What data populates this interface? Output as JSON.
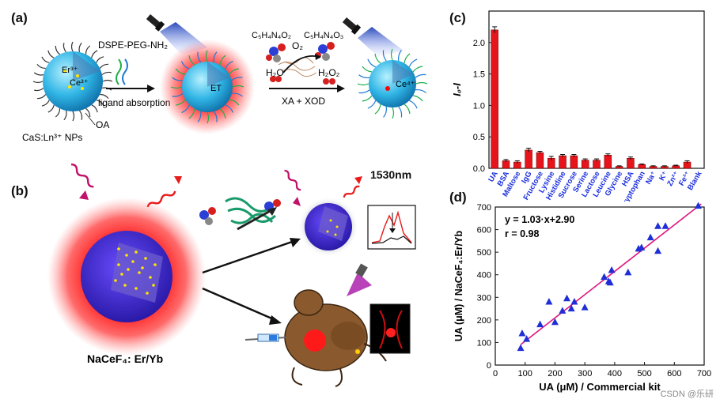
{
  "panels": {
    "a": {
      "label": "(a)",
      "np_label": "CaS:Ln³⁺ NPs",
      "er_ion": "Er³⁺",
      "ce3_ion": "Ce³⁺",
      "ce4_ion": "Ce⁴⁺",
      "oa": "OA",
      "dspe": "DSPE-PEG-NH₂",
      "ligand": "ligand absorption",
      "et": "ET",
      "substrate": "C₅H₄N₄O₂",
      "product": "C₅H₄N₄O₃",
      "o2": "O₂",
      "h2o": "H₂O",
      "h2o2": "H₂O₂",
      "enzyme": "XA + XOD"
    },
    "b": {
      "label": "(b)",
      "wavelength": "1530nm",
      "material": "NaCeF₄: Er/Yb"
    },
    "c": {
      "label": "(c)"
    },
    "d": {
      "label": "(d)"
    }
  },
  "watermark": "CSDN @乐研",
  "colors": {
    "bar": "#e8141b",
    "scatter": "#1f2fd6",
    "fit": "#e0167e",
    "ticklabel_blue": "#1a2ee0"
  },
  "chart_data": [
    {
      "id": "c",
      "type": "bar",
      "ylabel": "I₀-I",
      "ylim": [
        0,
        2.5
      ],
      "yticks": [
        0.0,
        0.5,
        1.0,
        1.5,
        2.0
      ],
      "categories": [
        "UA",
        "BSA",
        "Maltose",
        "IgG",
        "Fructose",
        "Lysine",
        "Histidine",
        "Sucrose",
        "Serine",
        "Lactose",
        "Leucine",
        "Glycine",
        "HSA",
        "Tryptophan",
        "Na⁺",
        "K⁺",
        "Zn²⁺",
        "Fe³⁺",
        "Blank"
      ],
      "values": [
        2.2,
        0.12,
        0.1,
        0.29,
        0.25,
        0.16,
        0.2,
        0.2,
        0.13,
        0.13,
        0.21,
        0.03,
        0.16,
        0.06,
        0.03,
        0.03,
        0.04,
        0.1,
        0.0
      ],
      "errors": [
        0.05,
        0.02,
        0.02,
        0.03,
        0.02,
        0.03,
        0.02,
        0.02,
        0.02,
        0.02,
        0.02,
        0.01,
        0.02,
        0.01,
        0.01,
        0.01,
        0.01,
        0.02,
        0.0
      ]
    },
    {
      "id": "d",
      "type": "scatter",
      "xlabel": "UA (μM) / Commercial kit",
      "ylabel": "UA (μM) / NaCeF₄:Er/Yb",
      "xlim": [
        0,
        700
      ],
      "ylim": [
        0,
        700
      ],
      "xticks": [
        0,
        100,
        200,
        300,
        400,
        500,
        600,
        700
      ],
      "yticks": [
        0,
        100,
        200,
        300,
        400,
        500,
        600,
        700
      ],
      "equation": "y = 1.03·x+2.90",
      "r_text": "r = 0.98",
      "fit": {
        "slope": 1.03,
        "intercept": 2.9,
        "x_range": [
          85,
          690
        ]
      },
      "points": [
        [
          85,
          75
        ],
        [
          90,
          140
        ],
        [
          105,
          115
        ],
        [
          150,
          180
        ],
        [
          180,
          280
        ],
        [
          200,
          190
        ],
        [
          225,
          240
        ],
        [
          240,
          295
        ],
        [
          255,
          250
        ],
        [
          265,
          280
        ],
        [
          300,
          255
        ],
        [
          365,
          390
        ],
        [
          380,
          370
        ],
        [
          385,
          365
        ],
        [
          390,
          420
        ],
        [
          445,
          410
        ],
        [
          480,
          515
        ],
        [
          490,
          520
        ],
        [
          520,
          565
        ],
        [
          545,
          505
        ],
        [
          545,
          615
        ],
        [
          570,
          615
        ],
        [
          680,
          705
        ]
      ]
    }
  ]
}
